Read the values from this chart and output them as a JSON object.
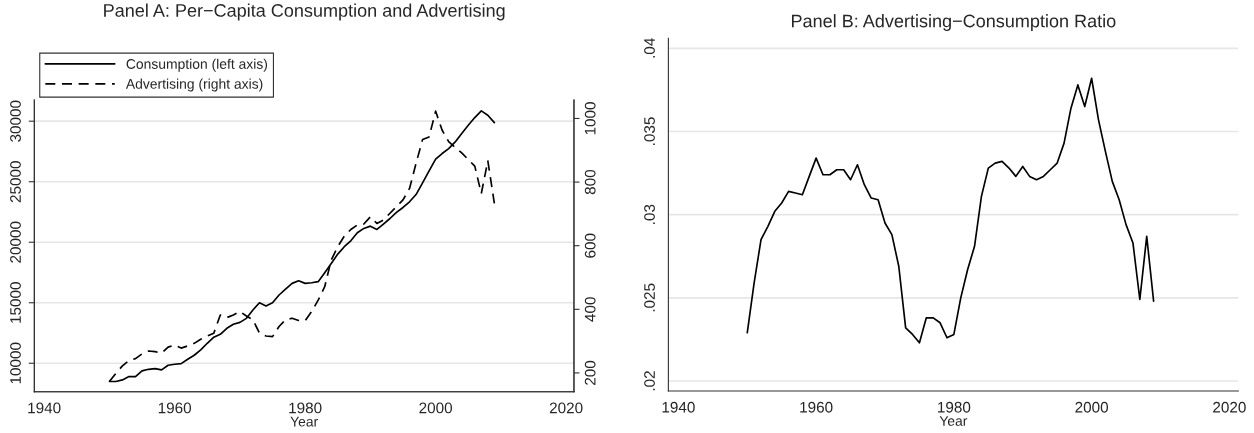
{
  "chart_data": [
    {
      "type": "line",
      "title": "Panel A: Per−Capita Consumption and Advertising",
      "xlabel": "Year",
      "x": [
        1950,
        1951,
        1952,
        1953,
        1954,
        1955,
        1956,
        1957,
        1958,
        1959,
        1960,
        1961,
        1962,
        1963,
        1964,
        1965,
        1966,
        1967,
        1968,
        1969,
        1970,
        1971,
        1972,
        1973,
        1974,
        1975,
        1976,
        1977,
        1978,
        1979,
        1980,
        1981,
        1982,
        1983,
        1984,
        1985,
        1986,
        1987,
        1988,
        1989,
        1990,
        1991,
        1992,
        1993,
        1994,
        1995,
        1996,
        1997,
        1998,
        1999,
        2000,
        2001,
        2002,
        2003,
        2004,
        2005,
        2006,
        2007,
        2008,
        2009
      ],
      "series": [
        {
          "name": "Consumption (left axis)",
          "color": "#000000",
          "line_style": "solid",
          "values": [
            8490,
            8490,
            8625,
            8900,
            8900,
            9370,
            9500,
            9560,
            9450,
            9835,
            9920,
            9970,
            10330,
            10660,
            11100,
            11650,
            12150,
            12390,
            12890,
            13220,
            13380,
            13710,
            14400,
            15000,
            14730,
            15000,
            15640,
            16130,
            16600,
            16820,
            16600,
            16650,
            16740,
            17480,
            18250,
            19020,
            19630,
            20120,
            20780,
            21140,
            21330,
            21060,
            21500,
            21960,
            22460,
            22870,
            23340,
            23940,
            24900,
            25900,
            26860,
            27330,
            27740,
            28290,
            28980,
            29660,
            30300,
            30850,
            30490,
            29880
          ]
        },
        {
          "name": "Advertising (right axis)",
          "color": "#000000",
          "line_style": "dashed",
          "axis": "y2",
          "values": [
            173,
            199,
            222,
            239,
            245,
            260,
            269,
            267,
            262,
            281,
            288,
            278,
            285,
            293,
            306,
            316,
            325,
            382,
            374,
            382,
            393,
            379,
            367,
            325,
            316,
            314,
            346,
            367,
            372,
            365,
            364,
            393,
            429,
            471,
            555,
            597,
            630,
            651,
            665,
            668,
            691,
            670,
            681,
            702,
            723,
            744,
            780,
            859,
            934,
            942,
            1023,
            963,
            927,
            909,
            892,
            871,
            850,
            764,
            867,
            733
          ]
        }
      ],
      "xlim": [
        1938.5,
        2021.2
      ],
      "xticks": [
        1940,
        1960,
        1980,
        2000,
        2020
      ],
      "ylim": [
        7650,
        31750
      ],
      "yticks": [
        10000,
        15000,
        20000,
        25000,
        30000
      ],
      "y2lim": [
        141,
        1058
      ],
      "y2ticks": [
        200,
        400,
        600,
        800,
        1000
      ],
      "grid": "y",
      "legend": "top left"
    },
    {
      "type": "line",
      "title": "Panel B: Advertising−Consumption Ratio",
      "xlabel": "Year",
      "x": [
        1950,
        1951,
        1952,
        1953,
        1954,
        1955,
        1956,
        1957,
        1958,
        1959,
        1960,
        1961,
        1962,
        1963,
        1964,
        1965,
        1966,
        1967,
        1968,
        1969,
        1970,
        1971,
        1972,
        1973,
        1974,
        1975,
        1976,
        1977,
        1978,
        1979,
        1980,
        1981,
        1982,
        1983,
        1984,
        1985,
        1986,
        1987,
        1988,
        1989,
        1990,
        1991,
        1992,
        1993,
        1994,
        1995,
        1996,
        1997,
        1998,
        1999,
        2000,
        2001,
        2002,
        2003,
        2004,
        2005,
        2006,
        2007,
        2008,
        2009
      ],
      "series": [
        {
          "color": "#000000",
          "line_style": "solid",
          "values": [
            0.0229,
            0.0259,
            0.0285,
            0.0293,
            0.0302,
            0.0307,
            0.0314,
            0.0313,
            0.0312,
            0.0323,
            0.0334,
            0.0324,
            0.0324,
            0.0327,
            0.0327,
            0.0321,
            0.033,
            0.0318,
            0.031,
            0.0309,
            0.0295,
            0.0288,
            0.0269,
            0.0232,
            0.0228,
            0.0223,
            0.0238,
            0.0238,
            0.0235,
            0.0226,
            0.0228,
            0.025,
            0.0267,
            0.0281,
            0.0311,
            0.0328,
            0.0331,
            0.0332,
            0.0328,
            0.0323,
            0.0329,
            0.0323,
            0.0321,
            0.0323,
            0.0327,
            0.0331,
            0.0343,
            0.0364,
            0.0378,
            0.0365,
            0.0382,
            0.0357,
            0.0338,
            0.032,
            0.0309,
            0.0294,
            0.0283,
            0.0249,
            0.0287,
            0.0248
          ]
        }
      ],
      "xlim": [
        1938.55,
        2021.3
      ],
      "xticks": [
        1940,
        1960,
        1980,
        2000,
        2020
      ],
      "ylim": [
        0.0194,
        0.0406
      ],
      "yticks": [
        {
          "value": 0.02,
          "label": ".02"
        },
        {
          "value": 0.025,
          "label": ".025"
        },
        {
          "value": 0.03,
          "label": ".03"
        },
        {
          "value": 0.035,
          "label": ".035"
        },
        {
          "value": 0.04,
          "label": ".04"
        }
      ],
      "grid": "y"
    }
  ]
}
